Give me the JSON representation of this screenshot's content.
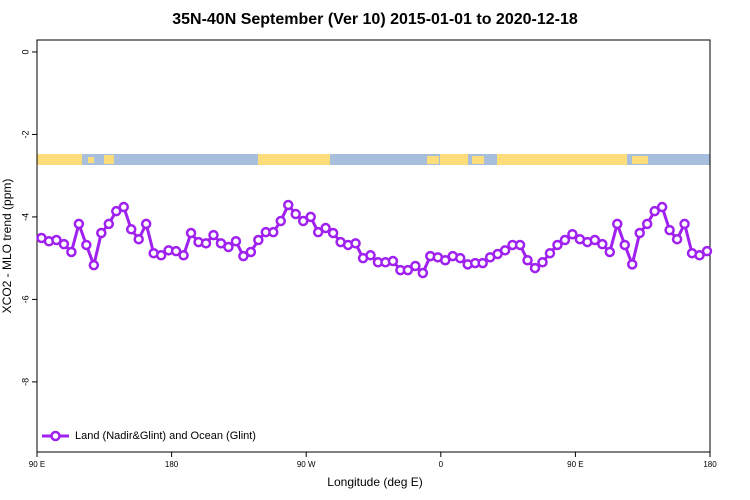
{
  "chart_data": {
    "type": "line",
    "title": "35N-40N September (Ver 10)   2015-01-01 to 2020-12-18",
    "xlabel": "Longitude (deg E)",
    "ylabel": "XCO2 - MLO trend (ppm)",
    "x": [
      93,
      98,
      103,
      108,
      113,
      118,
      123,
      128,
      133,
      138,
      143,
      148,
      153,
      158,
      163,
      168,
      173,
      178,
      183,
      188,
      193,
      198,
      203,
      208,
      213,
      218,
      223,
      228,
      233,
      238,
      243,
      248,
      253,
      258,
      263,
      268,
      273,
      278,
      283,
      288,
      293,
      298,
      303,
      308,
      313,
      318,
      323,
      328,
      333,
      338,
      343,
      348,
      353,
      358,
      363,
      368,
      373,
      378,
      383,
      388,
      393,
      398,
      403,
      408,
      413,
      418,
      423,
      428,
      433,
      438,
      443,
      448,
      453,
      458,
      463,
      468,
      473,
      478,
      483,
      488,
      493,
      498,
      503,
      508,
      513,
      518,
      523,
      528,
      533,
      538
    ],
    "series": [
      {
        "name": "Land (Nadir&Glint) and Ocean (Glint)",
        "color": "#a020f0",
        "values": [
          -4.51,
          -4.59,
          -4.56,
          -4.66,
          -4.85,
          -4.17,
          -4.68,
          -5.17,
          -4.39,
          -4.17,
          -3.86,
          -3.76,
          -4.3,
          -4.54,
          -4.17,
          -4.88,
          -4.93,
          -4.81,
          -4.83,
          -4.93,
          -4.39,
          -4.61,
          -4.64,
          -4.44,
          -4.64,
          -4.73,
          -4.59,
          -4.95,
          -4.85,
          -4.56,
          -4.37,
          -4.37,
          -4.1,
          -3.71,
          -3.93,
          -4.1,
          -4.0,
          -4.37,
          -4.27,
          -4.39,
          -4.61,
          -4.68,
          -4.64,
          -5.0,
          -4.93,
          -5.1,
          -5.1,
          -5.07,
          -5.29,
          -5.29,
          -5.19,
          -5.36,
          -4.95,
          -4.98,
          -5.05,
          -4.95,
          -5.0,
          -5.15,
          -5.12,
          -5.12,
          -4.98,
          -4.9,
          -4.81,
          -4.68,
          -4.68,
          -5.05,
          -5.24,
          -5.1,
          -4.88,
          -4.68,
          -4.56,
          -4.42,
          -4.54,
          -4.61,
          -4.56,
          -4.66,
          -4.85,
          -4.17,
          -4.68,
          -5.15,
          -4.39,
          -4.17,
          -3.86,
          -3.76,
          -4.32,
          -4.54,
          -4.17,
          -4.88,
          -4.93,
          -4.83
        ]
      }
    ],
    "xlim": [
      90,
      540
    ],
    "xticks": [
      {
        "value": 90,
        "label": "90 E"
      },
      180,
      {
        "value": 270,
        "label": "90 W"
      },
      {
        "value": 360,
        "label": "0"
      },
      {
        "value": 450,
        "label": "90 E"
      },
      {
        "value": 540,
        "label": "180"
      }
    ],
    "ylim": [
      -9.7,
      0.29
    ],
    "yticks": [
      0,
      -2,
      -4,
      -6,
      -8
    ],
    "legend": "bottomleft"
  }
}
